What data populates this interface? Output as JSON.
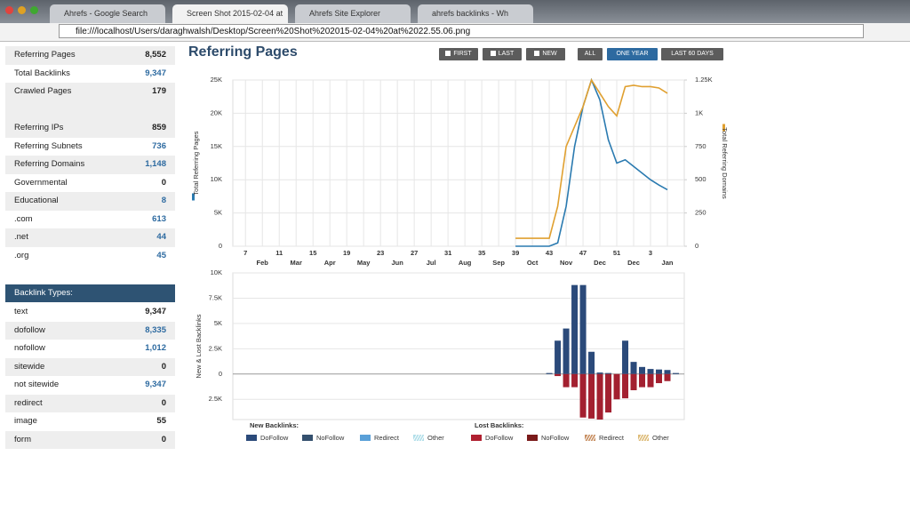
{
  "browser": {
    "tabs": [
      {
        "title": "Ahrefs - Google Search"
      },
      {
        "title": "Screen Shot 2015-02-04 at",
        "active": true
      },
      {
        "title": "Ahrefs Site Explorer"
      },
      {
        "title": "ahrefs backlinks - Wh"
      }
    ],
    "url": "file:///localhost/Users/daraghwalsh/Desktop/Screen%20Shot%202015-02-04%20at%2022.55.06.png"
  },
  "sidebar": {
    "stats": [
      {
        "label": "Referring Pages",
        "value": "8,552"
      },
      {
        "label": "Total Backlinks",
        "value": "9,347",
        "link": true
      },
      {
        "label": "Crawled Pages",
        "value": "179"
      },
      {
        "label": "Referring IPs",
        "value": "859"
      },
      {
        "label": "Referring Subnets",
        "value": "736",
        "link": true
      },
      {
        "label": "Referring Domains",
        "value": "1,148",
        "link": true
      },
      {
        "label": "Governmental",
        "value": "0"
      },
      {
        "label": "Educational",
        "value": "8",
        "link": true
      },
      {
        "label": ".com",
        "value": "613",
        "link": true
      },
      {
        "label": ".net",
        "value": "44",
        "link": true
      },
      {
        "label": ".org",
        "value": "45",
        "link": true
      }
    ],
    "section_title": "Backlink Types:",
    "types": [
      {
        "label": "text",
        "value": "9,347"
      },
      {
        "label": "dofollow",
        "value": "8,335",
        "link": true
      },
      {
        "label": "nofollow",
        "value": "1,012",
        "link": true
      },
      {
        "label": "sitewide",
        "value": "0"
      },
      {
        "label": "not sitewide",
        "value": "9,347",
        "link": true
      },
      {
        "label": "redirect",
        "value": "0"
      },
      {
        "label": "image",
        "value": "55"
      },
      {
        "label": "form",
        "value": "0"
      }
    ]
  },
  "page_title": "Referring Pages",
  "buttons": [
    {
      "label": "FIRST",
      "icon": true
    },
    {
      "label": "LAST",
      "icon": true
    },
    {
      "label": "NEW",
      "icon": true
    },
    {
      "label": "ALL"
    },
    {
      "label": "ONE YEAR",
      "active": true
    },
    {
      "label": "LAST 60 DAYS"
    }
  ],
  "chart_data": [
    {
      "type": "line",
      "y_label": "Total Referring Pages",
      "y2_label": "Total Referring Domains",
      "x": [
        39,
        40,
        41,
        42,
        43,
        44,
        45,
        46,
        47,
        48,
        49,
        50,
        51,
        52,
        53,
        54,
        55,
        56,
        57
      ],
      "series": [
        {
          "color": "#2a7ab0",
          "values": [
            0,
            0,
            0,
            0,
            0,
            500,
            6000,
            15000,
            21000,
            25000,
            22000,
            16000,
            12500,
            13000,
            12000,
            11000,
            10000,
            9200,
            8500
          ]
        },
        {
          "color": "#e0a030",
          "axis": "y2",
          "values": [
            60,
            60,
            60,
            60,
            60,
            300,
            750,
            900,
            1050,
            1250,
            1150,
            1050,
            980,
            1200,
            1210,
            1200,
            1200,
            1190,
            1150
          ]
        }
      ],
      "xlim": [
        5.5,
        59
      ],
      "xticks": [
        7,
        11,
        15,
        19,
        23,
        27,
        31,
        35,
        39,
        43,
        47,
        51,
        {
          "value": 55,
          "label": "3"
        }
      ],
      "month_ticks": [
        {
          "value": 9,
          "label": "Feb"
        },
        {
          "value": 13,
          "label": "Mar"
        },
        {
          "value": 17,
          "label": "Apr"
        },
        {
          "value": 21,
          "label": "May"
        },
        {
          "value": 25,
          "label": "Jun"
        },
        {
          "value": 29,
          "label": "Jul"
        },
        {
          "value": 33,
          "label": "Aug"
        },
        {
          "value": 37,
          "label": "Sep"
        },
        {
          "value": 41,
          "label": "Oct"
        },
        {
          "value": 45,
          "label": "Nov"
        },
        {
          "value": 49,
          "label": "Dec"
        },
        {
          "value": 53,
          "label": "Dec"
        },
        {
          "value": 57,
          "label": "Jan"
        }
      ],
      "ylim": [
        0,
        25000
      ],
      "yticks": [
        0,
        {
          "value": 5000,
          "label": "5K"
        },
        {
          "value": 10000,
          "label": "10K"
        },
        {
          "value": 15000,
          "label": "15K"
        },
        {
          "value": 20000,
          "label": "20K"
        },
        {
          "value": 25000,
          "label": "25K"
        }
      ],
      "y2lim": [
        0,
        1250
      ],
      "y2ticks": [
        0,
        250,
        500,
        750,
        {
          "value": 1000,
          "label": "1K"
        },
        {
          "value": 1250,
          "label": "1.25K"
        }
      ],
      "grid": true
    },
    {
      "type": "bar",
      "y_label": "New & Lost Backlinks",
      "x": [
        43,
        44,
        45,
        46,
        47,
        48,
        49,
        50,
        51,
        52,
        53,
        54,
        55,
        56,
        57,
        58
      ],
      "series": [
        {
          "color": "#2b4a7a",
          "values": [
            100,
            3300,
            4500,
            8800,
            8800,
            2200,
            150,
            100,
            0,
            3300,
            1200,
            700,
            500,
            450,
            400,
            100
          ]
        },
        {
          "color": "#a32030",
          "values": [
            0,
            -200,
            -1300,
            -1300,
            -4300,
            -4400,
            -4500,
            -3800,
            -2500,
            -2400,
            -1600,
            -1300,
            -1300,
            -900,
            -700,
            0
          ]
        }
      ],
      "xlim": [
        5.5,
        59
      ],
      "ylim": [
        -4500,
        10000
      ],
      "yticks": [
        {
          "value": -2500,
          "label": "2.5K"
        },
        0,
        {
          "value": 2500,
          "label": "2.5K"
        },
        {
          "value": 5000,
          "label": "5K"
        },
        {
          "value": 7500,
          "label": "7.5K"
        },
        {
          "value": 10000,
          "label": "10K"
        }
      ],
      "grid": true,
      "legend": [
        {
          "title": "New Backlinks:",
          "items": [
            {
              "label": "DoFollow",
              "color": "#2b4a7a"
            },
            {
              "label": "NoFollow",
              "color": "#34506e"
            },
            {
              "label": "Redirect",
              "color": "#5aa0d8"
            },
            {
              "label": "Other",
              "color": "#8fd0e0",
              "hatched": true
            }
          ]
        },
        {
          "title": "Lost Backlinks:",
          "items": [
            {
              "label": "DoFollow",
              "color": "#b02030"
            },
            {
              "label": "NoFollow",
              "color": "#7a1a1a"
            },
            {
              "label": "Redirect",
              "color": "#b06020",
              "hatched": true
            },
            {
              "label": "Other",
              "color": "#d0a040",
              "hatched": true
            }
          ]
        }
      ]
    }
  ]
}
